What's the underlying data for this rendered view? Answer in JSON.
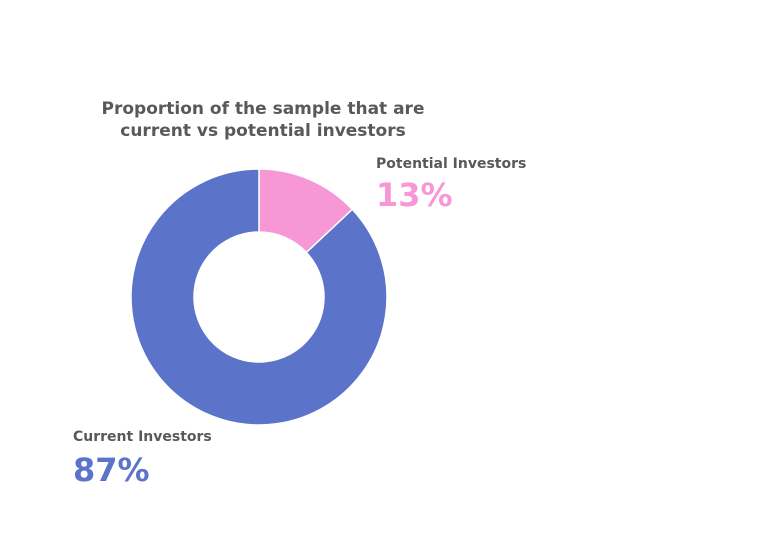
{
  "chart_data": {
    "type": "pie",
    "title": "Proportion of the sample that are current vs potential investors",
    "categories": [
      "Potential Investors",
      "Current Investors"
    ],
    "values": [
      13,
      87
    ],
    "value_labels": [
      "13%",
      "87%"
    ],
    "colors": [
      "#f797d6",
      "#5b73c9"
    ],
    "donut": true
  }
}
